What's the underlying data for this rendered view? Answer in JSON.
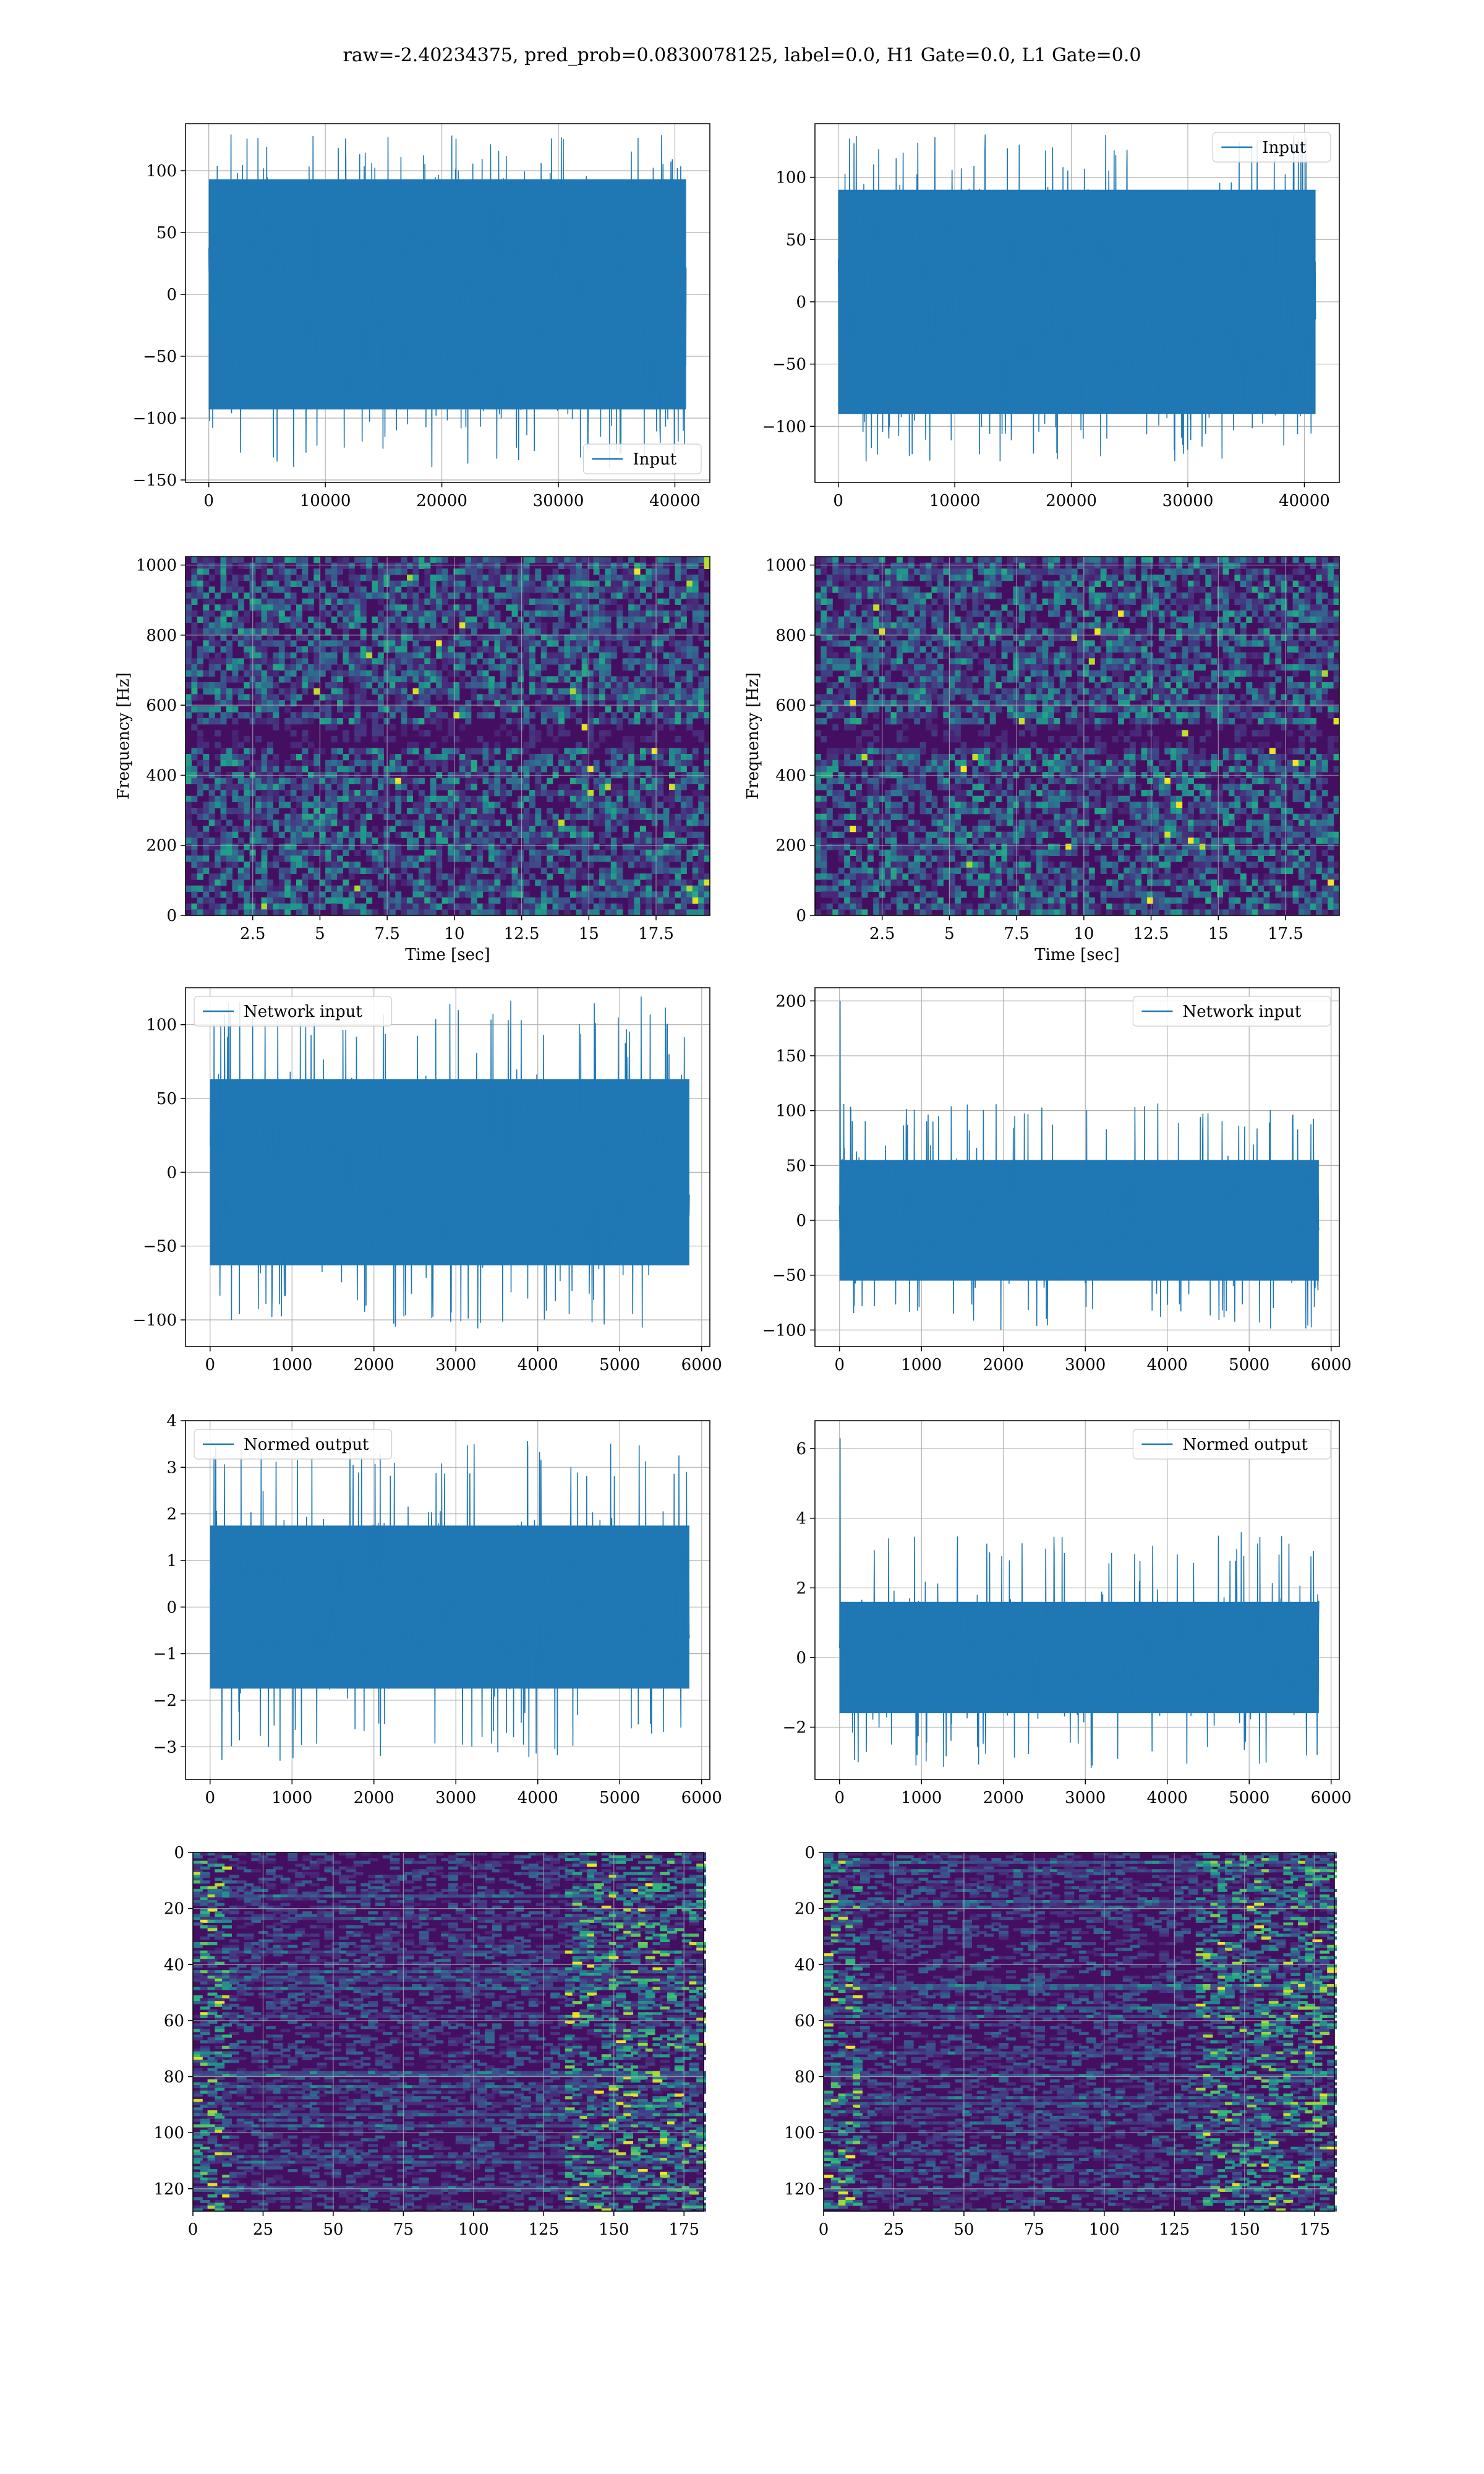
{
  "figure": {
    "title": "raw=-2.40234375, pred_prob=0.0830078125, label=0.0, H1 Gate=0.0, L1 Gate=0.0",
    "line_color": "#1f77b4"
  },
  "chart_data": [
    {
      "id": "p1",
      "type": "line",
      "series": [
        {
          "name": "Input",
          "values": "noise"
        }
      ],
      "legend": "lower right",
      "xlim": [
        -2000,
        43000
      ],
      "ylim": [
        -152,
        138
      ],
      "x_range": [
        0,
        40960
      ],
      "y_center": 0,
      "y_spread": [
        -93,
        93
      ],
      "y_peak": [
        -140,
        130
      ],
      "xticks": [
        0,
        10000,
        20000,
        30000,
        40000
      ],
      "yticks": [
        -150,
        -100,
        -50,
        0,
        50,
        100
      ],
      "grid": true
    },
    {
      "id": "p2",
      "type": "line",
      "series": [
        {
          "name": "Input",
          "values": "noise"
        }
      ],
      "legend": "upper right",
      "xlim": [
        -2000,
        43000
      ],
      "ylim": [
        -145,
        143
      ],
      "x_range": [
        0,
        40960
      ],
      "y_center": 0,
      "y_spread": [
        -90,
        90
      ],
      "y_peak": [
        -128,
        136
      ],
      "xticks": [
        0,
        10000,
        20000,
        30000,
        40000
      ],
      "yticks": [
        -100,
        -50,
        0,
        50,
        100
      ],
      "grid": true
    },
    {
      "id": "p3",
      "type": "heatmap",
      "xlabel": "Time [sec]",
      "ylabel": "Frequency [Hz]",
      "xlim": [
        0,
        19.5
      ],
      "ylim": [
        0,
        1024
      ],
      "xticks": [
        2.5,
        5.0,
        7.5,
        10.0,
        12.5,
        15.0,
        17.5
      ],
      "yticks": [
        0,
        200,
        400,
        600,
        800,
        1000
      ],
      "grid": true,
      "colormap": "viridis"
    },
    {
      "id": "p4",
      "type": "heatmap",
      "xlabel": "Time [sec]",
      "ylabel": "Frequency [Hz]",
      "xlim": [
        0,
        19.5
      ],
      "ylim": [
        0,
        1024
      ],
      "xticks": [
        2.5,
        5.0,
        7.5,
        10.0,
        12.5,
        15.0,
        17.5
      ],
      "yticks": [
        0,
        200,
        400,
        600,
        800,
        1000
      ],
      "grid": true,
      "colormap": "viridis"
    },
    {
      "id": "p5",
      "type": "line",
      "series": [
        {
          "name": "Network input",
          "values": "noise"
        }
      ],
      "legend": "upper left",
      "xlim": [
        -300,
        6100
      ],
      "ylim": [
        -118,
        125
      ],
      "x_range": [
        0,
        5850
      ],
      "y_center": 0,
      "y_spread": [
        -63,
        63
      ],
      "y_peak": [
        -106,
        120
      ],
      "xticks": [
        0,
        1000,
        2000,
        3000,
        4000,
        5000,
        6000
      ],
      "yticks": [
        -100,
        -50,
        0,
        50,
        100
      ],
      "grid": true
    },
    {
      "id": "p6",
      "type": "line",
      "series": [
        {
          "name": "Network input",
          "values": "noise"
        }
      ],
      "legend": "upper right",
      "xlim": [
        -300,
        6100
      ],
      "ylim": [
        -115,
        212
      ],
      "x_range": [
        0,
        5850
      ],
      "y_center": 0,
      "y_spread": [
        -55,
        55
      ],
      "y_peak": [
        -100,
        108
      ],
      "spike": 200,
      "xticks": [
        0,
        1000,
        2000,
        3000,
        4000,
        5000,
        6000
      ],
      "yticks": [
        -100,
        -50,
        0,
        50,
        100,
        150,
        200
      ],
      "grid": true
    },
    {
      "id": "p7",
      "type": "line",
      "series": [
        {
          "name": "Normed output",
          "values": "noise"
        }
      ],
      "legend": "upper left",
      "xlim": [
        -300,
        6100
      ],
      "ylim": [
        -3.7,
        4.0
      ],
      "x_range": [
        0,
        5850
      ],
      "y_center": 0,
      "y_spread": [
        -1.75,
        1.75
      ],
      "y_peak": [
        -3.3,
        3.7
      ],
      "xticks": [
        0,
        1000,
        2000,
        3000,
        4000,
        5000,
        6000
      ],
      "yticks": [
        -3,
        -2,
        -1,
        0,
        1,
        2,
        3,
        4
      ],
      "grid": true
    },
    {
      "id": "p8",
      "type": "line",
      "series": [
        {
          "name": "Normed output",
          "values": "noise"
        }
      ],
      "legend": "upper right",
      "xlim": [
        -300,
        6100
      ],
      "ylim": [
        -3.5,
        6.8
      ],
      "x_range": [
        0,
        5850
      ],
      "y_center": 0,
      "y_spread": [
        -1.6,
        1.6
      ],
      "y_peak": [
        -3.2,
        3.6
      ],
      "spike": 6.3,
      "xticks": [
        0,
        1000,
        2000,
        3000,
        4000,
        5000,
        6000
      ],
      "yticks": [
        -2,
        0,
        2,
        4,
        6
      ],
      "grid": true
    },
    {
      "id": "p9",
      "type": "heatmap",
      "xlim": [
        0,
        182
      ],
      "ylim": [
        128,
        0
      ],
      "xticks": [
        0,
        25,
        50,
        75,
        100,
        125,
        150,
        175
      ],
      "yticks": [
        0,
        20,
        40,
        60,
        80,
        100,
        120
      ],
      "grid": true,
      "colormap": "viridis"
    },
    {
      "id": "p10",
      "type": "heatmap",
      "xlim": [
        0,
        182
      ],
      "ylim": [
        128,
        0
      ],
      "xticks": [
        0,
        25,
        50,
        75,
        100,
        125,
        150,
        175
      ],
      "yticks": [
        0,
        20,
        40,
        60,
        80,
        100,
        120
      ],
      "grid": true,
      "colormap": "viridis"
    }
  ]
}
